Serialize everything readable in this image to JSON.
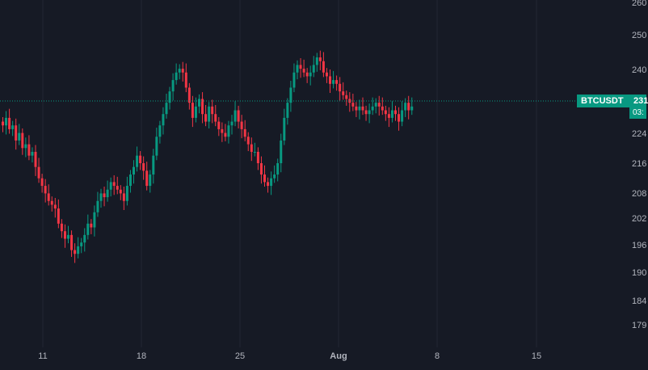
{
  "chart": {
    "symbol": "BTCUSDT",
    "last_price_label": "231",
    "countdown_label": "03:",
    "colors": {
      "background": "#161a25",
      "up": "#089981",
      "down": "#f23645",
      "grid": "#232632",
      "text": "#b2b5be"
    },
    "price_axis_labels": [
      "260",
      "250",
      "240",
      "231",
      "224",
      "216",
      "208",
      "202",
      "196",
      "190",
      "184",
      "179"
    ],
    "date_axis_labels": [
      "11",
      "18",
      "25",
      "Aug",
      "8",
      "15"
    ]
  },
  "chart_data": {
    "type": "candlestick",
    "symbol": "BTCUSDT",
    "y_axis_ticks": [
      260,
      250,
      240,
      224,
      216,
      208,
      202,
      196,
      190,
      184,
      179
    ],
    "x_axis_ticks": [
      "11",
      "18",
      "25",
      "Aug",
      "8",
      "15"
    ],
    "last_price": 231,
    "series": [
      {
        "name": "BTCUSDT",
        "close": [
          226,
          228,
          225,
          226,
          222,
          224,
          220,
          221,
          218,
          219,
          215,
          212,
          210,
          208,
          206,
          205,
          204,
          200,
          198,
          196,
          197,
          193,
          192,
          194,
          195,
          197,
          200,
          199,
          203,
          206,
          208,
          207,
          209,
          211,
          210,
          209,
          208,
          206,
          210,
          213,
          215,
          218,
          216,
          214,
          210,
          213,
          218,
          223,
          226,
          229,
          232,
          235,
          238,
          240,
          241,
          240,
          236,
          232,
          228,
          231,
          233,
          229,
          227,
          231,
          229,
          227,
          225,
          224,
          223,
          226,
          227,
          230,
          227,
          225,
          223,
          221,
          219,
          219,
          216,
          213,
          211,
          210,
          212,
          213,
          216,
          222,
          228,
          232,
          236,
          240,
          242,
          241,
          240,
          239,
          240,
          242,
          244,
          243,
          240,
          239,
          237,
          238,
          237,
          235,
          234,
          233,
          232,
          231,
          230,
          231,
          230,
          229,
          230,
          231,
          232,
          231,
          230,
          229,
          228,
          230,
          229,
          227,
          230,
          232,
          230,
          231
        ]
      }
    ]
  }
}
